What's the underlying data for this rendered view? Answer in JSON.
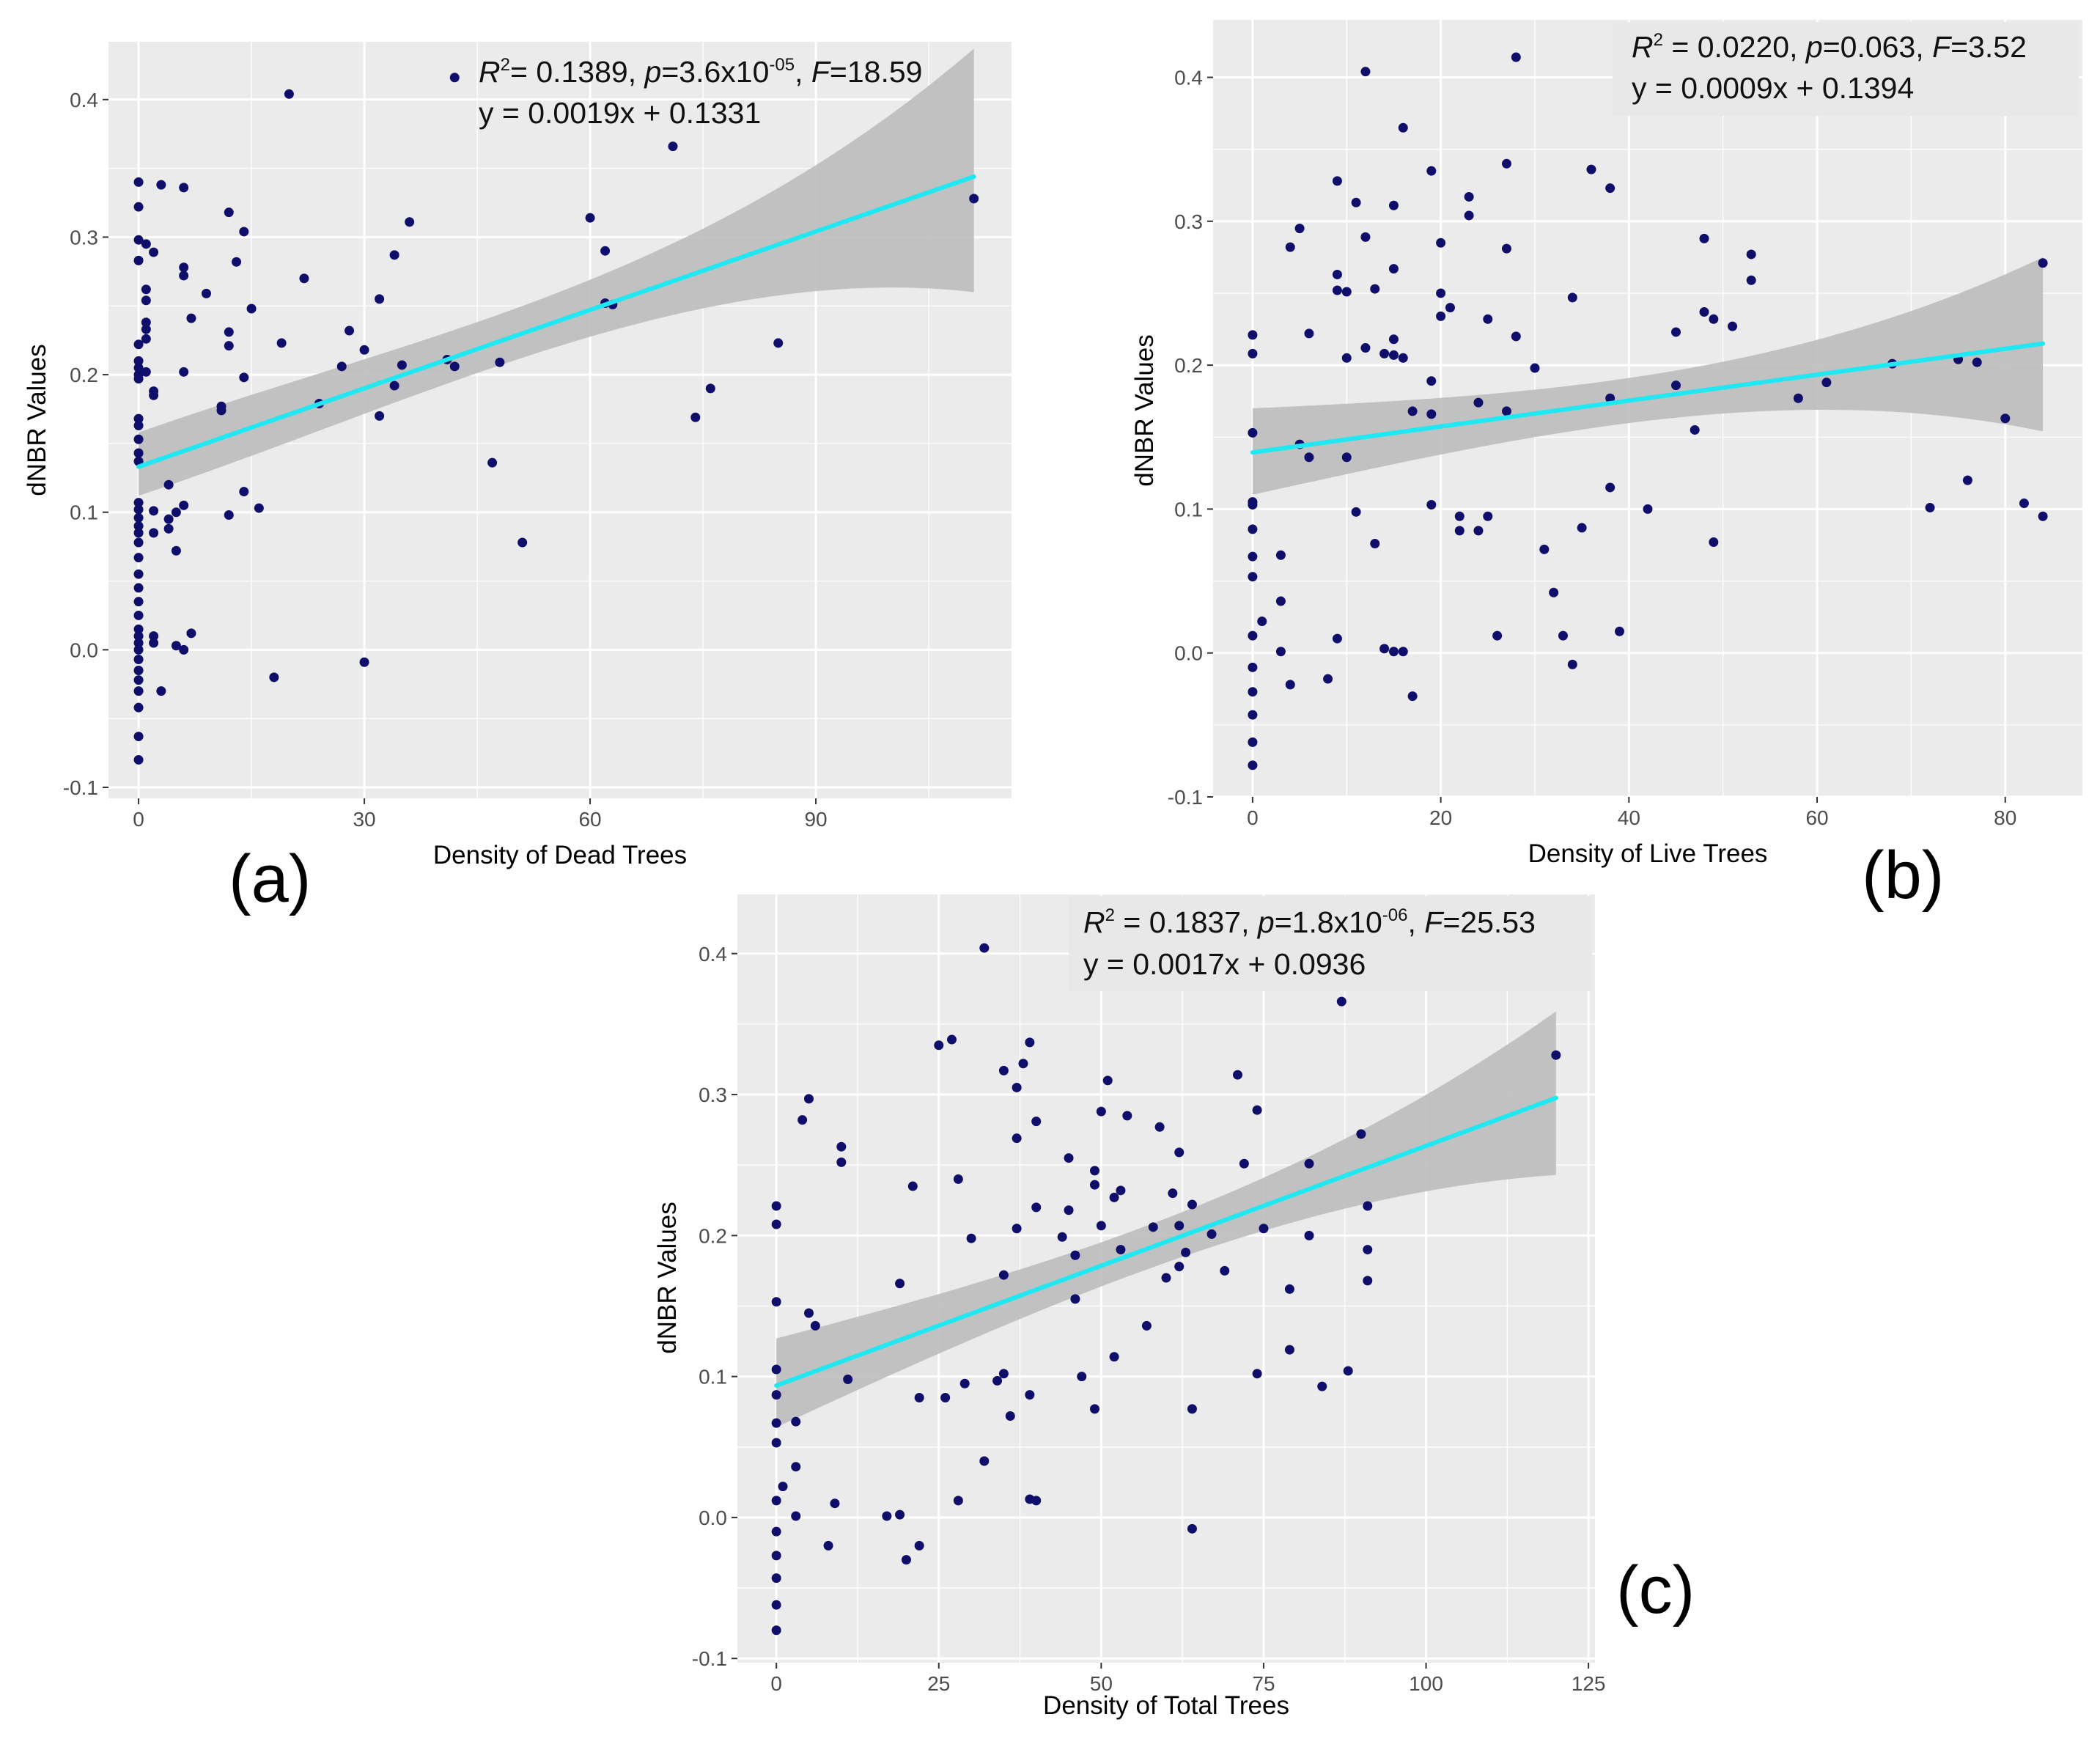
{
  "colors": {
    "panel_bg": "#ebebeb",
    "grid": "#ffffff",
    "point": "#0f0f6b",
    "fit_line": "#1fe8f2",
    "ci_band": "#bdbdbd"
  },
  "chart_data": [
    {
      "type": "scatter",
      "panel_label": "(a)",
      "xlabel": "Density of Dead Trees",
      "ylabel": "dNBR Values",
      "xlim": [
        -4,
        116
      ],
      "ylim": [
        -0.108,
        0.442
      ],
      "x_ticks": [
        0,
        30,
        60,
        90
      ],
      "x_tick_labels": [
        "0",
        "30",
        "60",
        "90"
      ],
      "y_ticks": [
        -0.1,
        0.0,
        0.1,
        0.2,
        0.3,
        0.4
      ],
      "y_tick_labels": [
        "-0.1",
        "0.0",
        "0.1",
        "0.2",
        "0.3",
        "0.4"
      ],
      "stats": {
        "r2": "0.1389",
        "p": "3.6x10",
        "p_exp": "-05",
        "F": "18.59",
        "equation": "y = 0.0019x + 0.1331"
      },
      "fit": {
        "slope": 0.0019,
        "intercept": 0.1331,
        "x_range": [
          0,
          111
        ]
      },
      "ci_band": {
        "x": [
          0,
          111
        ],
        "lower": [
          0.112,
          0.26
        ],
        "upper": [
          0.158,
          0.437
        ]
      },
      "points": [
        [
          0,
          0.34
        ],
        [
          0,
          0.322
        ],
        [
          0,
          0.298
        ],
        [
          0,
          0.283
        ],
        [
          0,
          0.222
        ],
        [
          0,
          0.21
        ],
        [
          0,
          0.205
        ],
        [
          0,
          0.2
        ],
        [
          0,
          0.197
        ],
        [
          0,
          0.168
        ],
        [
          0,
          0.163
        ],
        [
          0,
          0.153
        ],
        [
          0,
          0.143
        ],
        [
          0,
          0.137
        ],
        [
          0,
          0.107
        ],
        [
          0,
          0.102
        ],
        [
          0,
          0.096
        ],
        [
          0,
          0.09
        ],
        [
          0,
          0.085
        ],
        [
          0,
          0.078
        ],
        [
          0,
          0.067
        ],
        [
          0,
          0.055
        ],
        [
          0,
          0.045
        ],
        [
          0,
          0.035
        ],
        [
          0,
          0.025
        ],
        [
          0,
          0.015
        ],
        [
          0,
          0.01
        ],
        [
          0,
          0.005
        ],
        [
          0,
          0.0
        ],
        [
          0,
          -0.007
        ],
        [
          0,
          -0.015
        ],
        [
          0,
          -0.022
        ],
        [
          0,
          -0.03
        ],
        [
          0,
          -0.042
        ],
        [
          0,
          -0.063
        ],
        [
          0,
          -0.08
        ],
        [
          1,
          0.295
        ],
        [
          1,
          0.262
        ],
        [
          1,
          0.254
        ],
        [
          1,
          0.238
        ],
        [
          1,
          0.233
        ],
        [
          1,
          0.226
        ],
        [
          1,
          0.202
        ],
        [
          2,
          0.289
        ],
        [
          2,
          0.188
        ],
        [
          2,
          0.185
        ],
        [
          2,
          0.101
        ],
        [
          2,
          0.085
        ],
        [
          2,
          0.01
        ],
        [
          2,
          0.005
        ],
        [
          3,
          0.338
        ],
        [
          3,
          -0.03
        ],
        [
          4,
          0.12
        ],
        [
          4,
          0.095
        ],
        [
          4,
          0.088
        ],
        [
          5,
          0.1
        ],
        [
          5,
          0.072
        ],
        [
          5,
          0.003
        ],
        [
          6,
          0.336
        ],
        [
          6,
          0.278
        ],
        [
          6,
          0.272
        ],
        [
          6,
          0.202
        ],
        [
          6,
          0.105
        ],
        [
          6,
          0.0
        ],
        [
          7,
          0.241
        ],
        [
          7,
          0.012
        ],
        [
          9,
          0.259
        ],
        [
          11,
          0.177
        ],
        [
          11,
          0.174
        ],
        [
          12,
          0.318
        ],
        [
          12,
          0.231
        ],
        [
          12,
          0.221
        ],
        [
          12,
          0.098
        ],
        [
          13,
          0.282
        ],
        [
          14,
          0.304
        ],
        [
          14,
          0.198
        ],
        [
          14,
          0.115
        ],
        [
          15,
          0.248
        ],
        [
          16,
          0.103
        ],
        [
          18,
          -0.02
        ],
        [
          19,
          0.223
        ],
        [
          20,
          0.404
        ],
        [
          22,
          0.27
        ],
        [
          24,
          0.179
        ],
        [
          27,
          0.206
        ],
        [
          28,
          0.232
        ],
        [
          30,
          0.218
        ],
        [
          30,
          -0.009
        ],
        [
          32,
          0.255
        ],
        [
          32,
          0.17
        ],
        [
          34,
          0.287
        ],
        [
          34,
          0.192
        ],
        [
          35,
          0.207
        ],
        [
          36,
          0.311
        ],
        [
          41,
          0.211
        ],
        [
          42,
          0.206
        ],
        [
          42,
          0.416
        ],
        [
          47,
          0.136
        ],
        [
          48,
          0.209
        ],
        [
          51,
          0.078
        ],
        [
          60,
          0.314
        ],
        [
          62,
          0.29
        ],
        [
          62,
          0.252
        ],
        [
          63,
          0.251
        ],
        [
          71,
          0.366
        ],
        [
          74,
          0.169
        ],
        [
          76,
          0.19
        ],
        [
          85,
          0.223
        ],
        [
          111,
          0.328
        ]
      ]
    },
    {
      "type": "scatter",
      "panel_label": "(b)",
      "xlabel": "Density of Live Trees",
      "ylabel": "dNBR Values",
      "xlim": [
        -4.2,
        88.2
      ],
      "ylim": [
        -0.1,
        0.44
      ],
      "x_ticks": [
        0,
        20,
        40,
        60,
        80
      ],
      "x_tick_labels": [
        "0",
        "20",
        "40",
        "60",
        "80"
      ],
      "y_ticks": [
        -0.1,
        0.0,
        0.1,
        0.2,
        0.3,
        0.4
      ],
      "y_tick_labels": [
        "-0.1",
        "0.0",
        "0.1",
        "0.2",
        "0.3",
        "0.4"
      ],
      "stats": {
        "r2": "0.0220",
        "p": "0.063",
        "F": "3.52",
        "equation": "y = 0.0009x + 0.1394"
      },
      "fit": {
        "slope": 0.0009,
        "intercept": 0.1394,
        "x_range": [
          0,
          84
        ]
      },
      "ci_band": {
        "x": [
          0,
          84
        ],
        "lower": [
          0.11,
          0.154
        ],
        "upper": [
          0.17,
          0.275
        ]
      },
      "points": [
        [
          0,
          0.221
        ],
        [
          0,
          0.208
        ],
        [
          0,
          0.153
        ],
        [
          0,
          0.105
        ],
        [
          0,
          0.103
        ],
        [
          0,
          0.086
        ],
        [
          0,
          0.067
        ],
        [
          0,
          0.053
        ],
        [
          0,
          0.012
        ],
        [
          0,
          -0.01
        ],
        [
          0,
          -0.027
        ],
        [
          0,
          -0.043
        ],
        [
          0,
          -0.062
        ],
        [
          0,
          -0.078
        ],
        [
          1,
          0.022
        ],
        [
          3,
          0.068
        ],
        [
          3,
          0.036
        ],
        [
          3,
          0.001
        ],
        [
          4,
          0.282
        ],
        [
          4,
          -0.022
        ],
        [
          5,
          0.295
        ],
        [
          5,
          0.145
        ],
        [
          6,
          0.222
        ],
        [
          6,
          0.136
        ],
        [
          8,
          -0.018
        ],
        [
          9,
          0.328
        ],
        [
          9,
          0.263
        ],
        [
          9,
          0.252
        ],
        [
          9,
          0.01
        ],
        [
          10,
          0.251
        ],
        [
          10,
          0.205
        ],
        [
          10,
          0.136
        ],
        [
          11,
          0.313
        ],
        [
          11,
          0.098
        ],
        [
          12,
          0.404
        ],
        [
          12,
          0.289
        ],
        [
          12,
          0.212
        ],
        [
          13,
          0.253
        ],
        [
          13,
          0.076
        ],
        [
          14,
          0.208
        ],
        [
          14,
          0.003
        ],
        [
          15,
          0.311
        ],
        [
          15,
          0.267
        ],
        [
          15,
          0.218
        ],
        [
          15,
          0.207
        ],
        [
          15,
          0.001
        ],
        [
          16,
          0.365
        ],
        [
          16,
          0.205
        ],
        [
          16,
          0.001
        ],
        [
          17,
          0.168
        ],
        [
          17,
          -0.03
        ],
        [
          19,
          0.335
        ],
        [
          19,
          0.189
        ],
        [
          19,
          0.166
        ],
        [
          19,
          0.103
        ],
        [
          20,
          0.285
        ],
        [
          20,
          0.25
        ],
        [
          20,
          0.234
        ],
        [
          21,
          0.24
        ],
        [
          22,
          0.095
        ],
        [
          22,
          0.085
        ],
        [
          23,
          0.317
        ],
        [
          23,
          0.304
        ],
        [
          24,
          0.174
        ],
        [
          24,
          0.085
        ],
        [
          25,
          0.232
        ],
        [
          25,
          0.095
        ],
        [
          26,
          0.012
        ],
        [
          27,
          0.34
        ],
        [
          27,
          0.281
        ],
        [
          27,
          0.168
        ],
        [
          28,
          0.414
        ],
        [
          28,
          0.22
        ],
        [
          30,
          0.198
        ],
        [
          31,
          0.072
        ],
        [
          32,
          0.042
        ],
        [
          33,
          0.012
        ],
        [
          34,
          0.247
        ],
        [
          34,
          -0.008
        ],
        [
          35,
          0.087
        ],
        [
          36,
          0.336
        ],
        [
          38,
          0.323
        ],
        [
          38,
          0.177
        ],
        [
          38,
          0.115
        ],
        [
          39,
          0.015
        ],
        [
          42,
          0.1
        ],
        [
          45,
          0.223
        ],
        [
          45,
          0.186
        ],
        [
          47,
          0.155
        ],
        [
          48,
          0.288
        ],
        [
          48,
          0.237
        ],
        [
          49,
          0.232
        ],
        [
          49,
          0.077
        ],
        [
          51,
          0.227
        ],
        [
          53,
          0.277
        ],
        [
          53,
          0.259
        ],
        [
          58,
          0.177
        ],
        [
          61,
          0.188
        ],
        [
          68,
          0.201
        ],
        [
          72,
          0.101
        ],
        [
          75,
          0.204
        ],
        [
          76,
          0.12
        ],
        [
          77,
          0.202
        ],
        [
          80,
          0.163
        ],
        [
          82,
          0.104
        ],
        [
          84,
          0.271
        ],
        [
          84,
          0.095
        ]
      ]
    },
    {
      "type": "scatter",
      "panel_label": "(c)",
      "xlabel": "Density of Total Trees",
      "ylabel": "dNBR Values",
      "xlim": [
        -6,
        126
      ],
      "ylim": [
        -0.103,
        0.442
      ],
      "x_ticks": [
        0,
        25,
        50,
        75,
        100,
        125
      ],
      "x_tick_labels": [
        "0",
        "25",
        "50",
        "75",
        "100",
        "125"
      ],
      "y_ticks": [
        -0.1,
        0.0,
        0.1,
        0.2,
        0.3,
        0.4
      ],
      "y_tick_labels": [
        "-0.1",
        "0.0",
        "0.1",
        "0.2",
        "0.3",
        "0.4"
      ],
      "stats": {
        "r2": "0.1837",
        "p": "1.8x10",
        "p_exp": "-06",
        "F": "25.53",
        "equation": "y = 0.0017x + 0.0936"
      },
      "fit": {
        "slope": 0.0017,
        "intercept": 0.0936,
        "x_range": [
          0,
          120
        ]
      },
      "ci_band": {
        "x": [
          0,
          120
        ],
        "lower": [
          0.064,
          0.243
        ],
        "upper": [
          0.127,
          0.359
        ]
      },
      "points": [
        [
          0,
          0.221
        ],
        [
          0,
          0.208
        ],
        [
          0,
          0.153
        ],
        [
          0,
          0.105
        ],
        [
          0,
          0.087
        ],
        [
          0,
          0.067
        ],
        [
          0,
          0.053
        ],
        [
          0,
          0.012
        ],
        [
          0,
          -0.01
        ],
        [
          0,
          -0.027
        ],
        [
          0,
          -0.043
        ],
        [
          0,
          -0.062
        ],
        [
          0,
          -0.08
        ],
        [
          1,
          0.022
        ],
        [
          3,
          0.068
        ],
        [
          3,
          0.036
        ],
        [
          3,
          0.001
        ],
        [
          4,
          0.282
        ],
        [
          5,
          0.297
        ],
        [
          5,
          0.145
        ],
        [
          6,
          0.136
        ],
        [
          8,
          -0.02
        ],
        [
          9,
          0.01
        ],
        [
          10,
          0.263
        ],
        [
          10,
          0.252
        ],
        [
          11,
          0.098
        ],
        [
          17,
          0.001
        ],
        [
          19,
          0.166
        ],
        [
          19,
          0.002
        ],
        [
          20,
          -0.03
        ],
        [
          21,
          0.235
        ],
        [
          22,
          0.085
        ],
        [
          22,
          -0.02
        ],
        [
          25,
          0.335
        ],
        [
          26,
          0.085
        ],
        [
          27,
          0.339
        ],
        [
          28,
          0.24
        ],
        [
          28,
          0.012
        ],
        [
          29,
          0.095
        ],
        [
          30,
          0.198
        ],
        [
          32,
          0.404
        ],
        [
          32,
          0.04
        ],
        [
          34,
          0.097
        ],
        [
          35,
          0.317
        ],
        [
          35,
          0.172
        ],
        [
          35,
          0.102
        ],
        [
          36,
          0.072
        ],
        [
          37,
          0.305
        ],
        [
          37,
          0.269
        ],
        [
          37,
          0.205
        ],
        [
          38,
          0.322
        ],
        [
          39,
          0.337
        ],
        [
          39,
          0.087
        ],
        [
          39,
          0.013
        ],
        [
          40,
          0.281
        ],
        [
          40,
          0.22
        ],
        [
          40,
          0.012
        ],
        [
          44,
          0.199
        ],
        [
          45,
          0.255
        ],
        [
          45,
          0.218
        ],
        [
          46,
          0.186
        ],
        [
          46,
          0.155
        ],
        [
          47,
          0.1
        ],
        [
          49,
          0.246
        ],
        [
          49,
          0.236
        ],
        [
          49,
          0.077
        ],
        [
          50,
          0.288
        ],
        [
          50,
          0.207
        ],
        [
          51,
          0.31
        ],
        [
          52,
          0.227
        ],
        [
          52,
          0.114
        ],
        [
          53,
          0.232
        ],
        [
          53,
          0.19
        ],
        [
          54,
          0.285
        ],
        [
          57,
          0.136
        ],
        [
          58,
          0.206
        ],
        [
          59,
          0.277
        ],
        [
          60,
          0.17
        ],
        [
          61,
          0.23
        ],
        [
          62,
          0.259
        ],
        [
          62,
          0.207
        ],
        [
          62,
          0.178
        ],
        [
          63,
          0.188
        ],
        [
          64,
          0.222
        ],
        [
          64,
          0.077
        ],
        [
          64,
          -0.008
        ],
        [
          67,
          0.201
        ],
        [
          69,
          0.175
        ],
        [
          71,
          0.314
        ],
        [
          72,
          0.251
        ],
        [
          74,
          0.289
        ],
        [
          74,
          0.102
        ],
        [
          75,
          0.205
        ],
        [
          79,
          0.162
        ],
        [
          79,
          0.119
        ],
        [
          82,
          0.251
        ],
        [
          82,
          0.2
        ],
        [
          84,
          0.093
        ],
        [
          87,
          0.366
        ],
        [
          88,
          0.104
        ],
        [
          90,
          0.272
        ],
        [
          91,
          0.221
        ],
        [
          91,
          0.19
        ],
        [
          91,
          0.168
        ],
        [
          120,
          0.328
        ]
      ]
    }
  ]
}
